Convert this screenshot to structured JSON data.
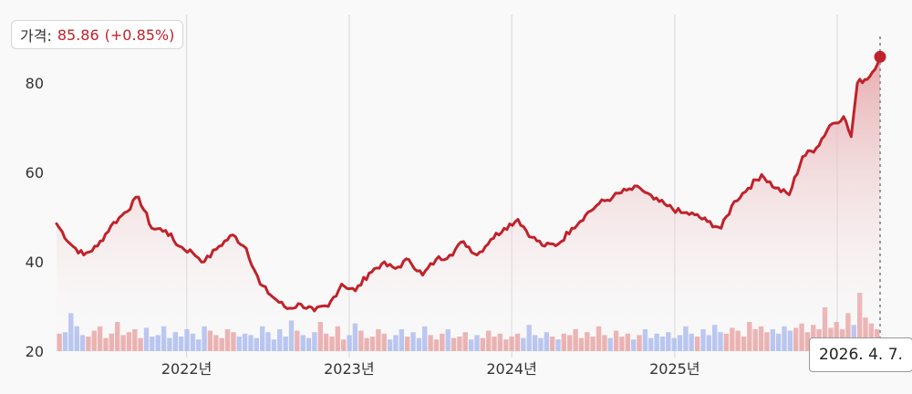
{
  "price_label": {
    "label": "가격:",
    "value": "85.86",
    "change": "(+0.85%)"
  },
  "date_tooltip": "2026. 4. 7.",
  "colors": {
    "line": "#c0222a",
    "area_top": "#e5a4a8",
    "up_volume": "#e8a0a0",
    "down_volume": "#a8b8ef",
    "grid": "#dcdcdc",
    "background": "#f9f9f9"
  },
  "chart_data": {
    "type": "line",
    "title": "",
    "xlabel": "",
    "ylabel": "",
    "ylim": [
      20,
      90
    ],
    "xlim": [
      "2021-03-15",
      "2026-04-07"
    ],
    "grid": true,
    "y_ticks": [
      "20",
      "40",
      "60",
      "80"
    ],
    "x_ticks": [
      {
        "label": "2022년",
        "date": "2022-01-01"
      },
      {
        "label": "2023년",
        "date": "2023-01-01"
      },
      {
        "label": "2024년",
        "date": "2024-01-01"
      },
      {
        "label": "2025년",
        "date": "2025-01-01"
      }
    ],
    "last_point": {
      "date": "2026-04-07",
      "value": 85.86
    },
    "series": [
      {
        "points": [
          [
            "2021-03-15",
            48.5
          ],
          [
            "2021-04-15",
            44.0
          ],
          [
            "2021-05-15",
            41.5
          ],
          [
            "2021-06-15",
            43.5
          ],
          [
            "2021-07-15",
            48.0
          ],
          [
            "2021-08-15",
            51.0
          ],
          [
            "2021-09-15",
            54.5
          ],
          [
            "2021-10-15",
            47.5
          ],
          [
            "2021-11-15",
            47.0
          ],
          [
            "2021-12-15",
            43.5
          ],
          [
            "2022-01-15",
            42.0
          ],
          [
            "2022-02-10",
            40.0
          ],
          [
            "2022-03-15",
            43.5
          ],
          [
            "2022-04-15",
            46.0
          ],
          [
            "2022-05-15",
            43.0
          ],
          [
            "2022-06-15",
            35.0
          ],
          [
            "2022-07-15",
            32.0
          ],
          [
            "2022-08-15",
            29.5
          ],
          [
            "2022-09-15",
            30.5
          ],
          [
            "2022-10-15",
            29.0
          ],
          [
            "2022-11-15",
            30.0
          ],
          [
            "2022-12-15",
            35.0
          ],
          [
            "2023-01-15",
            33.5
          ],
          [
            "2023-02-15",
            37.5
          ],
          [
            "2023-03-15",
            39.5
          ],
          [
            "2023-04-15",
            38.5
          ],
          [
            "2023-05-15",
            40.5
          ],
          [
            "2023-06-15",
            37.0
          ],
          [
            "2023-07-15",
            40.5
          ],
          [
            "2023-08-15",
            41.5
          ],
          [
            "2023-09-15",
            44.5
          ],
          [
            "2023-10-15",
            41.5
          ],
          [
            "2023-11-15",
            45.0
          ],
          [
            "2023-12-15",
            47.5
          ],
          [
            "2024-01-15",
            49.5
          ],
          [
            "2024-02-15",
            45.5
          ],
          [
            "2024-03-15",
            43.5
          ],
          [
            "2024-04-15",
            44.0
          ],
          [
            "2024-05-15",
            47.5
          ],
          [
            "2024-06-15",
            50.5
          ],
          [
            "2024-07-15",
            53.0
          ],
          [
            "2024-08-15",
            54.5
          ],
          [
            "2024-09-15",
            56.0
          ],
          [
            "2024-10-15",
            56.5
          ],
          [
            "2024-11-15",
            54.0
          ],
          [
            "2024-12-15",
            52.5
          ],
          [
            "2025-01-15",
            51.0
          ],
          [
            "2025-02-15",
            50.5
          ],
          [
            "2025-03-15",
            49.0
          ],
          [
            "2025-04-15",
            47.5
          ],
          [
            "2025-05-15",
            53.5
          ],
          [
            "2025-06-15",
            56.5
          ],
          [
            "2025-07-15",
            59.5
          ],
          [
            "2025-08-15",
            56.5
          ],
          [
            "2025-09-15",
            55.0
          ],
          [
            "2025-10-15",
            63.5
          ],
          [
            "2025-11-15",
            65.5
          ],
          [
            "2025-12-15",
            70.5
          ],
          [
            "2026-01-15",
            72.5
          ],
          [
            "2026-02-01",
            68.0
          ],
          [
            "2026-02-15",
            80.0
          ],
          [
            "2026-03-15",
            81.5
          ],
          [
            "2026-04-07",
            85.86
          ]
        ]
      }
    ],
    "volume": {
      "up_color": "#e8a0a0",
      "down_color": "#a8b8ef",
      "values_relative": [
        0.24,
        0.26,
        0.52,
        0.34,
        0.22,
        0.2,
        0.28,
        0.34,
        0.18,
        0.24,
        0.4,
        0.22,
        0.26,
        0.3,
        0.18,
        0.32,
        0.2,
        0.22,
        0.34,
        0.18,
        0.26,
        0.2,
        0.3,
        0.24,
        0.16,
        0.34,
        0.28,
        0.22,
        0.18,
        0.3,
        0.26,
        0.2,
        0.24,
        0.22,
        0.18,
        0.34,
        0.26,
        0.16,
        0.3,
        0.2,
        0.42,
        0.28,
        0.22,
        0.18,
        0.26,
        0.4,
        0.24,
        0.2,
        0.34,
        0.16,
        0.22,
        0.38,
        0.28,
        0.18,
        0.2,
        0.3,
        0.24,
        0.16,
        0.22,
        0.3,
        0.2,
        0.26,
        0.18,
        0.34,
        0.22,
        0.16,
        0.24,
        0.3,
        0.18,
        0.2,
        0.26,
        0.16,
        0.22,
        0.18,
        0.28,
        0.2,
        0.24,
        0.16,
        0.2,
        0.24,
        0.18,
        0.36,
        0.22,
        0.18,
        0.26,
        0.2,
        0.16,
        0.24,
        0.22,
        0.3,
        0.18,
        0.26,
        0.2,
        0.34,
        0.22,
        0.18,
        0.28,
        0.2,
        0.24,
        0.16,
        0.22,
        0.3,
        0.18,
        0.24,
        0.2,
        0.26,
        0.18,
        0.22,
        0.34,
        0.24,
        0.2,
        0.3,
        0.22,
        0.36,
        0.26,
        0.24,
        0.32,
        0.28,
        0.2,
        0.4,
        0.3,
        0.34,
        0.26,
        0.3,
        0.24,
        0.34,
        0.28,
        0.32,
        0.38,
        0.26,
        0.36,
        0.3,
        0.6,
        0.32,
        0.4,
        0.3,
        0.52,
        0.36,
        0.8,
        0.46,
        0.38,
        0.3
      ]
    }
  }
}
